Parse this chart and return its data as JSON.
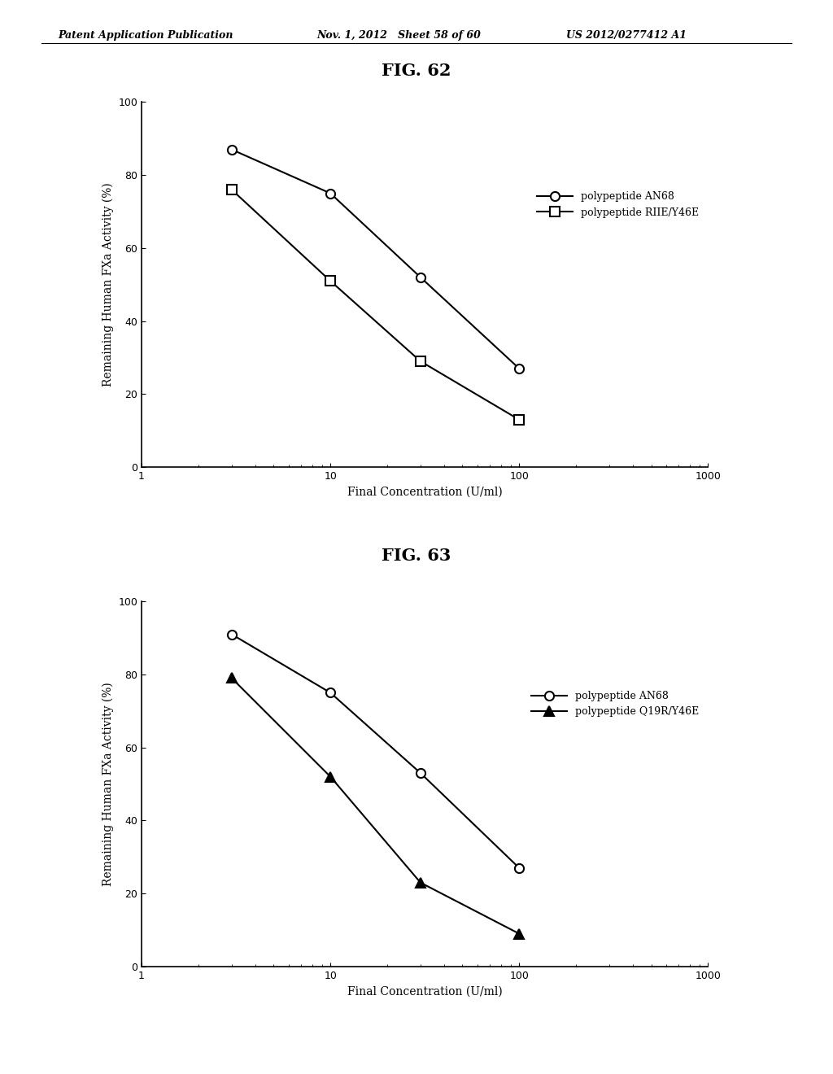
{
  "header_left": "Patent Application Publication",
  "header_mid": "Nov. 1, 2012   Sheet 58 of 60",
  "header_right": "US 2012/0277412 A1",
  "fig62_title": "FIG. 62",
  "fig63_title": "FIG. 63",
  "ylabel": "Remaining Human FXa Activity (%)",
  "xlabel": "Final Concentration (U/ml)",
  "fig62": {
    "series1_label": "polypeptide AN68",
    "series1_x": [
      3,
      10,
      30,
      100
    ],
    "series1_y": [
      87,
      75,
      52,
      27
    ],
    "series1_marker": "o",
    "series2_label": "polypeptide RIIE/Y46E",
    "series2_x": [
      3,
      10,
      30,
      100
    ],
    "series2_y": [
      76,
      51,
      29,
      13
    ],
    "series2_marker": "s"
  },
  "fig63": {
    "series1_label": "polypeptide AN68",
    "series1_x": [
      3,
      10,
      30,
      100
    ],
    "series1_y": [
      91,
      75,
      53,
      27
    ],
    "series1_marker": "o",
    "series2_label": "polypeptide Q19R/Y46E",
    "series2_x": [
      3,
      10,
      30,
      100
    ],
    "series2_y": [
      79,
      52,
      23,
      9
    ],
    "series2_marker": "^"
  },
  "ylim": [
    0,
    100
  ],
  "xlim_log": [
    1,
    1000
  ],
  "yticks": [
    0,
    20,
    40,
    60,
    80,
    100
  ],
  "xticks": [
    1,
    10,
    100,
    1000
  ],
  "background_color": "#ffffff",
  "line_color": "#000000",
  "marker_size": 8,
  "line_width": 1.5,
  "font_size_header": 9,
  "font_size_title": 15,
  "font_size_axis_label": 10,
  "font_size_tick": 9,
  "font_size_legend": 9
}
